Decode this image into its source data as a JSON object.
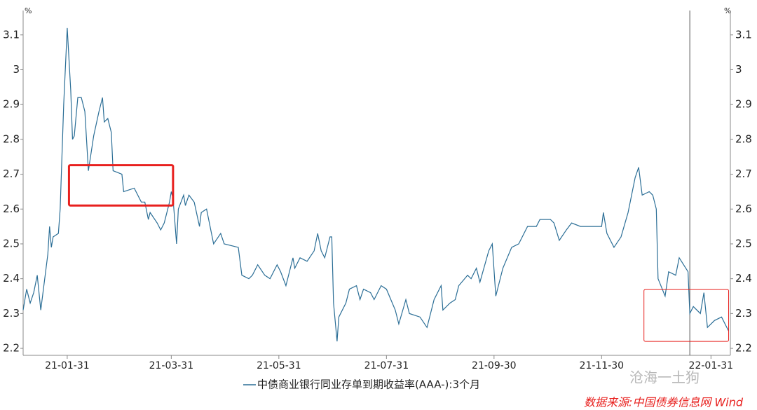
{
  "chart_data": {
    "type": "line",
    "y_unit": "%",
    "x": [
      "21-01-06",
      "21-01-08",
      "21-01-10",
      "21-01-12",
      "21-01-14",
      "21-01-16",
      "21-01-18",
      "21-01-20",
      "21-01-21",
      "21-01-22",
      "21-01-23",
      "21-01-26",
      "21-01-27",
      "21-01-29",
      "21-01-31",
      "21-02-02",
      "21-02-03",
      "21-02-04",
      "21-02-06",
      "21-02-08",
      "21-02-10",
      "21-02-12",
      "21-02-15",
      "21-02-18",
      "21-02-20",
      "21-02-21",
      "21-02-23",
      "21-02-25",
      "21-02-26",
      "21-03-03",
      "21-03-04",
      "21-03-10",
      "21-03-12",
      "21-03-14",
      "21-03-16",
      "21-03-18",
      "21-03-19",
      "21-03-23",
      "21-03-25",
      "21-03-27",
      "21-03-30",
      "21-03-31",
      "21-04-01",
      "21-04-03",
      "21-04-04",
      "21-04-07",
      "21-04-08",
      "21-04-10",
      "21-04-13",
      "21-04-16",
      "21-04-17",
      "21-04-20",
      "21-04-24",
      "21-04-28",
      "21-04-30",
      "21-05-08",
      "21-05-10",
      "21-05-14",
      "21-05-16",
      "21-05-19",
      "21-05-23",
      "21-05-26",
      "21-05-30",
      "21-06-01",
      "21-06-04",
      "21-06-08",
      "21-06-09",
      "21-06-12",
      "21-06-16",
      "21-06-20",
      "21-06-22",
      "21-06-24",
      "21-06-26",
      "21-06-29",
      "21-06-30",
      "21-07-01",
      "21-07-03",
      "21-07-04",
      "21-07-08",
      "21-07-10",
      "21-07-14",
      "21-07-16",
      "21-07-18",
      "21-07-22",
      "21-07-24",
      "21-07-28",
      "21-07-31",
      "21-08-05",
      "21-08-07",
      "21-08-11",
      "21-08-13",
      "21-08-19",
      "21-08-23",
      "21-08-27",
      "21-08-31",
      "21-09-01",
      "21-09-05",
      "21-09-08",
      "21-09-10",
      "21-09-15",
      "21-09-17",
      "21-09-20",
      "21-09-22",
      "21-09-27",
      "21-09-29",
      "21-10-01",
      "21-10-05",
      "21-10-10",
      "21-10-14",
      "21-10-19",
      "21-10-24",
      "21-10-26",
      "21-11-01",
      "21-11-03",
      "21-11-06",
      "21-11-10",
      "21-11-13",
      "21-11-18",
      "21-11-25",
      "21-11-30",
      "21-12-01",
      "21-12-03",
      "21-12-07",
      "21-12-11",
      "21-12-15",
      "21-12-19",
      "21-12-21",
      "21-12-23",
      "21-12-27",
      "21-12-29",
      "21-12-31",
      "22-01-01",
      "22-01-05",
      "22-01-07",
      "22-01-11",
      "22-01-13",
      "22-01-18",
      "22-01-19",
      "22-01-21",
      "22-01-25",
      "22-01-27",
      "22-01-29",
      "22-02-02",
      "22-02-06",
      "22-02-10"
    ],
    "series": [
      {
        "name": "中债商业银行同业存单到期收益率(AAA-):3个月",
        "color": "#2b6e96",
        "values": [
          2.31,
          2.37,
          2.33,
          2.36,
          2.41,
          2.31,
          2.39,
          2.47,
          2.55,
          2.49,
          2.52,
          2.53,
          2.6,
          2.9,
          3.12,
          2.94,
          2.8,
          2.81,
          2.92,
          2.92,
          2.88,
          2.71,
          2.81,
          2.88,
          2.92,
          2.85,
          2.86,
          2.82,
          2.71,
          2.7,
          2.65,
          2.66,
          2.64,
          2.62,
          2.62,
          2.57,
          2.59,
          2.56,
          2.54,
          2.56,
          2.62,
          2.65,
          2.63,
          2.5,
          2.6,
          2.64,
          2.61,
          2.64,
          2.62,
          2.55,
          2.59,
          2.6,
          2.5,
          2.53,
          2.5,
          2.49,
          2.41,
          2.4,
          2.41,
          2.44,
          2.41,
          2.4,
          2.44,
          2.42,
          2.38,
          2.46,
          2.43,
          2.46,
          2.45,
          2.48,
          2.53,
          2.48,
          2.46,
          2.52,
          2.52,
          2.33,
          2.22,
          2.29,
          2.33,
          2.37,
          2.38,
          2.34,
          2.37,
          2.36,
          2.34,
          2.38,
          2.37,
          2.31,
          2.27,
          2.34,
          2.3,
          2.29,
          2.26,
          2.34,
          2.38,
          2.31,
          2.33,
          2.34,
          2.38,
          2.41,
          2.4,
          2.43,
          2.39,
          2.48,
          2.5,
          2.35,
          2.43,
          2.49,
          2.5,
          2.55,
          2.55,
          2.57,
          2.57,
          2.56,
          2.51,
          2.54,
          2.56,
          2.55,
          2.55,
          2.55,
          2.59,
          2.53,
          2.49,
          2.52,
          2.59,
          2.69,
          2.72,
          2.64,
          2.65,
          2.64,
          2.6,
          2.4,
          2.35,
          2.42,
          2.41,
          2.46,
          2.42,
          2.3,
          2.32,
          2.3,
          2.36,
          2.26,
          2.28,
          2.29,
          2.25
        ]
      }
    ],
    "xlim": [
      "21-01-06",
      "22-02-11"
    ],
    "xticks": [
      "21-01-31",
      "21-03-31",
      "21-05-31",
      "21-07-31",
      "21-09-30",
      "21-11-30",
      "22-01-31"
    ],
    "ylim": [
      2.18,
      3.17
    ],
    "yticks": [
      2.2,
      2.3,
      2.4,
      2.5,
      2.6,
      2.7,
      2.8,
      2.9,
      3.0,
      3.1
    ],
    "grid": false,
    "marker_x": "22-01-19",
    "highlights": [
      {
        "x": [
          "21-02-01",
          "21-04-01"
        ],
        "y": [
          2.61,
          2.726
        ],
        "color": "#e8201e",
        "width": 3
      },
      {
        "x": [
          "21-12-24",
          "22-02-10"
        ],
        "y": [
          2.22,
          2.369
        ],
        "color": "#e8201e",
        "width": 1
      }
    ],
    "watermark": "沧海一土狗",
    "source": "数据来源:中国债券信息网 Wind"
  }
}
